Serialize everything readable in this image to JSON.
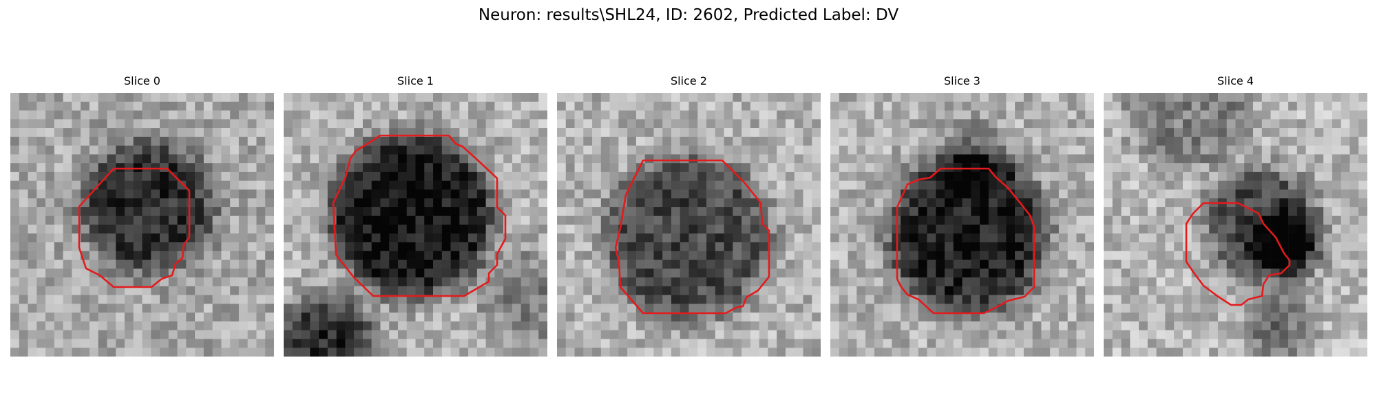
{
  "figure": {
    "title": "Neuron: results\\SHL24, ID: 2602, Predicted Label: DV"
  },
  "colors": {
    "contour": "#e41a1c",
    "background": "#ffffff"
  },
  "panels": [
    {
      "title": "Slice 0"
    },
    {
      "title": "Slice 1"
    },
    {
      "title": "Slice 2"
    },
    {
      "title": "Slice 3"
    },
    {
      "title": "Slice 4"
    }
  ]
}
